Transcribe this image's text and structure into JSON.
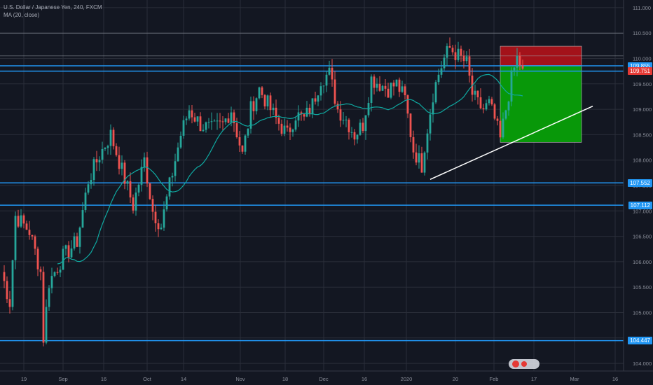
{
  "header": {
    "symbol_line": "U.S. Dollar / Japanese Yen, 240, FXCM",
    "indicator_line": "MA (20, close)"
  },
  "price_axis": {
    "ticks": [
      "111.000",
      "110.500",
      "110.000",
      "109.500",
      "109.000",
      "108.500",
      "108.000",
      "107.500",
      "107.000",
      "106.500",
      "106.000",
      "105.500",
      "105.000",
      "104.500",
      "104.000"
    ],
    "min": 103.85,
    "max": 111.15
  },
  "time_axis": {
    "labels": [
      "19",
      "Sep",
      "16",
      "Oct",
      "14",
      "Nov",
      "18",
      "Dec",
      "16",
      "2020",
      "20",
      "Feb",
      "17",
      "Mar",
      "16"
    ]
  },
  "horizontal_levels": [
    {
      "price": 109.855,
      "label": "109.855",
      "show_tag": true
    },
    {
      "price": 109.751,
      "label": "109.751",
      "show_tag": true
    },
    {
      "price": 107.552,
      "label": "107.552",
      "show_tag": true
    },
    {
      "price": 107.112,
      "label": "107.112",
      "show_tag": true
    },
    {
      "price": 104.447,
      "label": "104.447",
      "show_tag": true
    },
    {
      "price": 110.5,
      "label": "",
      "show_tag": false
    },
    {
      "price": 110.05,
      "label": "",
      "show_tag": false
    }
  ],
  "position": {
    "type": "short",
    "entry": 109.86,
    "stop": 110.24,
    "target": 108.35,
    "start_bar": 178,
    "end_bar": 207
  },
  "trendline": {
    "from": [
      153,
      107.62
    ],
    "to": [
      211,
      109.06
    ]
  },
  "candle_anchors": [
    [
      0,
      105.8
    ],
    [
      3,
      105.2
    ],
    [
      5,
      106.9
    ],
    [
      10,
      106.6
    ],
    [
      14,
      105.8
    ],
    [
      15,
      104.5
    ],
    [
      17,
      105.6
    ],
    [
      22,
      106.1
    ],
    [
      27,
      106.4
    ],
    [
      31,
      107.6
    ],
    [
      35,
      108.1
    ],
    [
      39,
      108.5
    ],
    [
      43,
      107.8
    ],
    [
      47,
      107.1
    ],
    [
      51,
      108.0
    ],
    [
      54,
      107.0
    ],
    [
      57,
      106.7
    ],
    [
      60,
      107.5
    ],
    [
      64,
      108.5
    ],
    [
      67,
      109.0
    ],
    [
      71,
      108.7
    ],
    [
      75,
      108.6
    ],
    [
      79,
      108.7
    ],
    [
      82,
      109.0
    ],
    [
      86,
      108.1
    ],
    [
      89,
      109.0
    ],
    [
      92,
      109.4
    ],
    [
      95,
      109.1
    ],
    [
      98,
      108.8
    ],
    [
      102,
      108.5
    ],
    [
      105,
      108.9
    ],
    [
      108,
      108.8
    ],
    [
      111,
      109.1
    ],
    [
      114,
      109.6
    ],
    [
      117,
      109.7
    ],
    [
      120,
      109.0
    ],
    [
      123,
      108.8
    ],
    [
      126,
      108.5
    ],
    [
      129,
      108.7
    ],
    [
      132,
      109.6
    ],
    [
      135,
      109.5
    ],
    [
      138,
      109.4
    ],
    [
      141,
      109.5
    ],
    [
      144,
      109.2
    ],
    [
      147,
      108.2
    ],
    [
      150,
      107.9
    ],
    [
      151,
      108.3
    ],
    [
      154,
      109.3
    ],
    [
      156,
      109.7
    ],
    [
      158,
      110.0
    ],
    [
      160,
      110.2
    ],
    [
      162,
      110.1
    ],
    [
      164,
      110.0
    ],
    [
      166,
      109.9
    ],
    [
      168,
      109.3
    ],
    [
      170,
      109.1
    ],
    [
      172,
      109.0
    ],
    [
      174,
      109.1
    ],
    [
      176,
      108.8
    ],
    [
      178,
      108.4
    ],
    [
      180,
      109.0
    ],
    [
      182,
      109.6
    ],
    [
      184,
      110.0
    ],
    [
      186,
      109.8
    ]
  ],
  "colors": {
    "background": "#131722",
    "grid": "#2a2e39",
    "up_candle": "#26a69a",
    "down_candle": "#ef5350",
    "ma_line": "#0fa8a0",
    "level_line": "#2196f3",
    "level_tag_bg": "#2196f3",
    "tag_red": "#e53935",
    "stop_zone": "#a3121a",
    "target_zone": "#089809",
    "trendline": "#ffffff",
    "axis_text": "#8a8e99"
  }
}
